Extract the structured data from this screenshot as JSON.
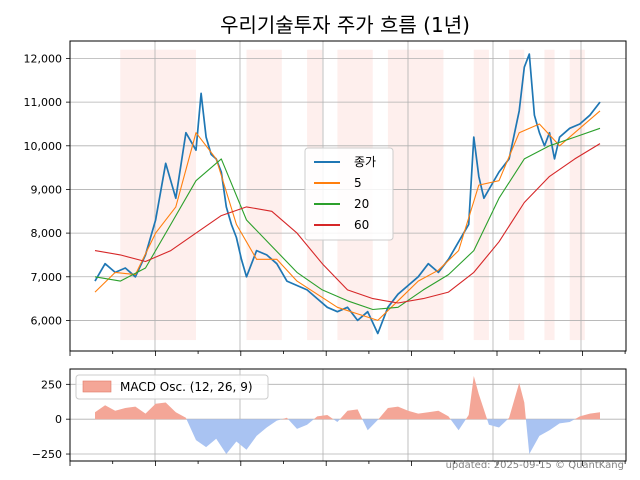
{
  "chart_data": [
    {
      "type": "line",
      "title": "우리기술투자 주가 흐름 (1년)",
      "xlabel": "",
      "ylabel": "",
      "ylim": [
        5300,
        12400
      ],
      "yticks": [
        6000,
        7000,
        8000,
        9000,
        10000,
        11000,
        12000
      ],
      "ytick_labels": [
        "6,000",
        "7,000",
        "8,000",
        "9,000",
        "10,000",
        "11,000",
        "12,000"
      ],
      "grid": true,
      "legend_position": "center",
      "colors": {
        "close": "#1f77b4",
        "ma5": "#ff7f0e",
        "ma20": "#2ca02c",
        "ma60": "#d62728",
        "shade": "#fde8e6"
      },
      "shaded_x_ranges": [
        [
          0.05,
          0.2
        ],
        [
          0.3,
          0.37
        ],
        [
          0.42,
          0.45
        ],
        [
          0.48,
          0.55
        ],
        [
          0.58,
          0.69
        ],
        [
          0.75,
          0.78
        ],
        [
          0.82,
          0.85
        ],
        [
          0.89,
          0.91
        ],
        [
          0.94,
          0.97
        ]
      ],
      "series": [
        {
          "name": "종가",
          "color": "#1f77b4",
          "x": [
            0.0,
            0.02,
            0.04,
            0.06,
            0.08,
            0.1,
            0.12,
            0.14,
            0.16,
            0.18,
            0.2,
            0.21,
            0.22,
            0.23,
            0.24,
            0.25,
            0.26,
            0.27,
            0.28,
            0.29,
            0.3,
            0.32,
            0.34,
            0.36,
            0.38,
            0.4,
            0.42,
            0.44,
            0.46,
            0.48,
            0.5,
            0.52,
            0.54,
            0.56,
            0.58,
            0.6,
            0.62,
            0.64,
            0.66,
            0.68,
            0.7,
            0.72,
            0.74,
            0.75,
            0.76,
            0.77,
            0.78,
            0.8,
            0.82,
            0.84,
            0.85,
            0.86,
            0.87,
            0.88,
            0.89,
            0.9,
            0.91,
            0.92,
            0.94,
            0.96,
            0.98,
            1.0
          ],
          "y": [
            6900,
            7300,
            7100,
            7200,
            7000,
            7500,
            8300,
            9600,
            8800,
            10300,
            9900,
            11200,
            10200,
            9800,
            9700,
            9400,
            8600,
            8200,
            7900,
            7400,
            7000,
            7600,
            7500,
            7300,
            6900,
            6800,
            6700,
            6500,
            6300,
            6200,
            6300,
            6000,
            6200,
            5700,
            6300,
            6600,
            6800,
            7000,
            7300,
            7100,
            7400,
            7800,
            8200,
            10200,
            9300,
            8800,
            9000,
            9400,
            9700,
            10800,
            11800,
            12100,
            10700,
            10300,
            10000,
            10300,
            9700,
            10200,
            10400,
            10500,
            10700,
            11000
          ],
          "values": [
            6900,
            7300,
            7100,
            7200,
            7000,
            7500,
            8300,
            9600,
            8800,
            10300,
            9900,
            11200,
            10200,
            9800,
            9700,
            9400,
            8600,
            8200,
            7900,
            7400,
            7000,
            7600,
            7500,
            7300,
            6900,
            6800,
            6700,
            6500,
            6300,
            6200,
            6300,
            6000,
            6200,
            5700,
            6300,
            6600,
            6800,
            7000,
            7300,
            7100,
            7400,
            7800,
            8200,
            10200,
            9300,
            8800,
            9000,
            9400,
            9700,
            10800,
            11800,
            12100,
            10700,
            10300,
            10000,
            10300,
            9700,
            10200,
            10400,
            10500,
            10700,
            11000
          ]
        },
        {
          "name": "5",
          "color": "#ff7f0e",
          "x": [
            0.0,
            0.04,
            0.08,
            0.12,
            0.16,
            0.2,
            0.24,
            0.28,
            0.32,
            0.36,
            0.4,
            0.44,
            0.48,
            0.52,
            0.56,
            0.6,
            0.64,
            0.68,
            0.72,
            0.76,
            0.8,
            0.84,
            0.88,
            0.92,
            0.96,
            1.0
          ],
          "y": [
            6650,
            7100,
            7050,
            8000,
            8600,
            10300,
            9700,
            8200,
            7400,
            7400,
            6900,
            6600,
            6300,
            6150,
            6000,
            6450,
            6900,
            7150,
            7600,
            9100,
            9200,
            10300,
            10500,
            10000,
            10400,
            10800
          ],
          "values": [
            6650,
            7100,
            7050,
            8000,
            8600,
            10300,
            9700,
            8200,
            7400,
            7400,
            6900,
            6600,
            6300,
            6150,
            6000,
            6450,
            6900,
            7150,
            7600,
            9100,
            9200,
            10300,
            10500,
            10000,
            10400,
            10800
          ]
        },
        {
          "name": "20",
          "color": "#2ca02c",
          "x": [
            0.0,
            0.05,
            0.1,
            0.15,
            0.2,
            0.25,
            0.3,
            0.35,
            0.4,
            0.45,
            0.5,
            0.55,
            0.6,
            0.65,
            0.7,
            0.75,
            0.8,
            0.85,
            0.9,
            0.95,
            1.0
          ],
          "y": [
            7000,
            6900,
            7200,
            8200,
            9200,
            9700,
            8300,
            7700,
            7100,
            6700,
            6450,
            6250,
            6300,
            6700,
            7050,
            7600,
            8800,
            9700,
            10000,
            10200,
            10400
          ],
          "values": [
            7000,
            6900,
            7200,
            8200,
            9200,
            9700,
            8300,
            7700,
            7100,
            6700,
            6450,
            6250,
            6300,
            6700,
            7050,
            7600,
            8800,
            9700,
            10000,
            10200,
            10400
          ]
        },
        {
          "name": "60",
          "color": "#d62728",
          "x": [
            0.0,
            0.05,
            0.1,
            0.15,
            0.2,
            0.25,
            0.3,
            0.35,
            0.4,
            0.45,
            0.5,
            0.55,
            0.6,
            0.65,
            0.7,
            0.75,
            0.8,
            0.85,
            0.9,
            0.95,
            1.0
          ],
          "y": [
            7600,
            7500,
            7350,
            7600,
            8000,
            8400,
            8600,
            8500,
            8000,
            7300,
            6700,
            6500,
            6400,
            6500,
            6650,
            7100,
            7800,
            8700,
            9300,
            9700,
            10050
          ],
          "values": [
            7600,
            7500,
            7350,
            7600,
            8000,
            8400,
            8600,
            8500,
            8000,
            7300,
            6700,
            6500,
            6400,
            6500,
            6650,
            7100,
            7800,
            8700,
            9300,
            9700,
            10050
          ]
        }
      ]
    },
    {
      "type": "area",
      "title": "",
      "xlabel": "",
      "ylabel": "",
      "ylim": [
        -300,
        360
      ],
      "yticks": [
        -250,
        0,
        250
      ],
      "ytick_labels": [
        "−250",
        "0",
        "250"
      ],
      "grid": true,
      "legend_position": "top-left",
      "colors": {
        "positive": "#f4a697",
        "negative": "#a9c3f2"
      },
      "series": [
        {
          "name": "MACD Osc. (12, 26, 9)",
          "x": [
            0.0,
            0.02,
            0.04,
            0.06,
            0.08,
            0.1,
            0.12,
            0.14,
            0.16,
            0.18,
            0.2,
            0.22,
            0.24,
            0.26,
            0.28,
            0.3,
            0.32,
            0.34,
            0.36,
            0.38,
            0.4,
            0.42,
            0.44,
            0.46,
            0.48,
            0.5,
            0.52,
            0.54,
            0.56,
            0.58,
            0.6,
            0.62,
            0.64,
            0.66,
            0.68,
            0.7,
            0.72,
            0.74,
            0.75,
            0.76,
            0.78,
            0.8,
            0.82,
            0.84,
            0.85,
            0.86,
            0.88,
            0.9,
            0.92,
            0.94,
            0.96,
            0.98,
            1.0
          ],
          "y": [
            50,
            100,
            60,
            80,
            90,
            40,
            110,
            120,
            50,
            10,
            -150,
            -200,
            -140,
            -250,
            -160,
            -220,
            -120,
            -60,
            -10,
            10,
            -70,
            -40,
            20,
            30,
            -20,
            60,
            70,
            -80,
            -5,
            80,
            90,
            60,
            40,
            50,
            60,
            20,
            -80,
            30,
            310,
            180,
            -40,
            -60,
            10,
            260,
            120,
            -250,
            -120,
            -80,
            -30,
            -20,
            20,
            40,
            50
          ],
          "values": [
            50,
            100,
            60,
            80,
            90,
            40,
            110,
            120,
            50,
            10,
            -150,
            -200,
            -140,
            -250,
            -160,
            -220,
            -120,
            -60,
            -10,
            10,
            -70,
            -40,
            20,
            30,
            -20,
            60,
            70,
            -80,
            -5,
            80,
            90,
            60,
            40,
            50,
            60,
            20,
            -80,
            30,
            310,
            180,
            -40,
            -60,
            10,
            260,
            120,
            -250,
            -120,
            -80,
            -30,
            -20,
            20,
            40,
            50
          ]
        }
      ]
    }
  ],
  "footer": {
    "text": "updated: 2025-09-15 © QuantKang"
  }
}
